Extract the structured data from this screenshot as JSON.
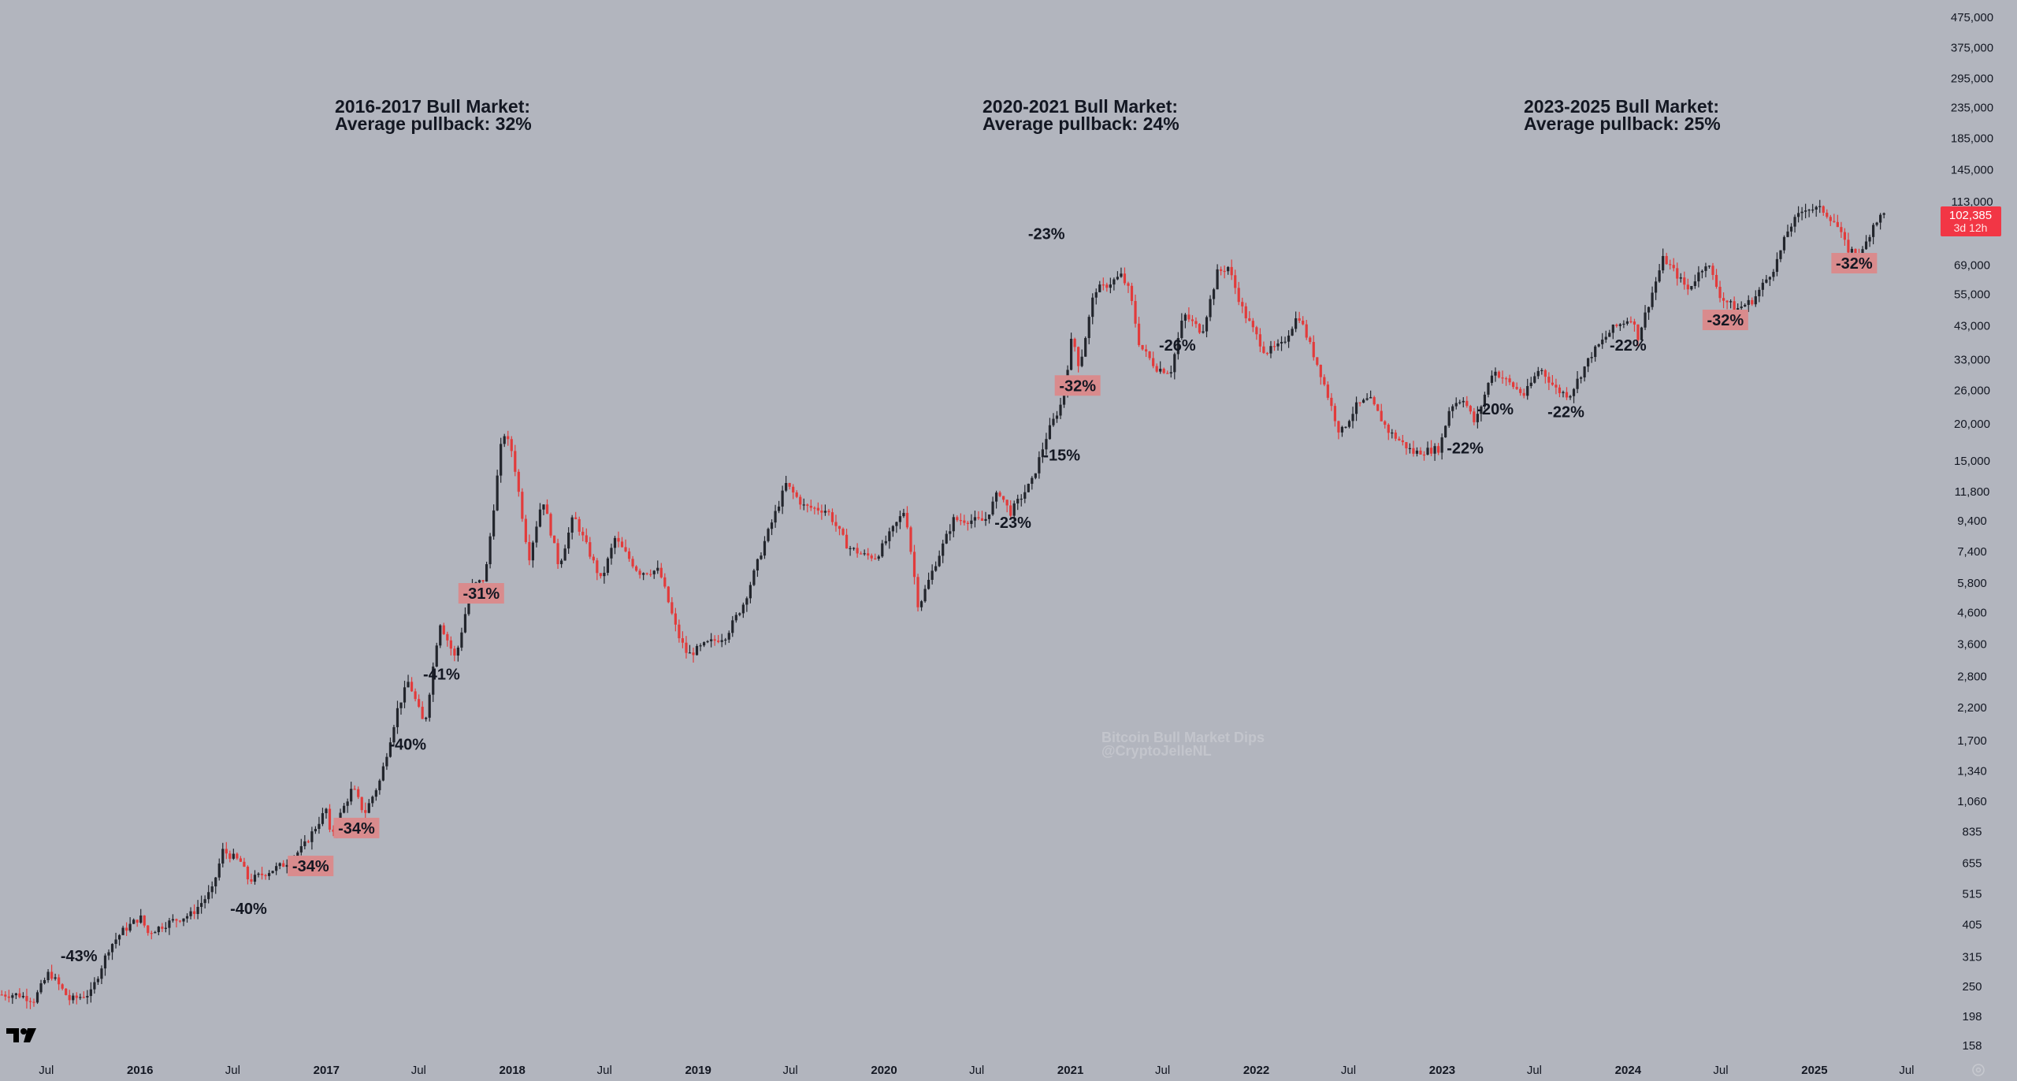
{
  "colors": {
    "background": "#b2b5be",
    "up_candle": "#22252c",
    "down_candle": "#e23b3b",
    "label_highlight": "#d98b8d",
    "price_tag": "#f23645"
  },
  "headings": [
    {
      "line1": "2016-2017 Bull Market:",
      "line2": "Average pullback: 32%"
    },
    {
      "line1": "2020-2021 Bull Market:",
      "line2": "Average pullback: 24%"
    },
    {
      "line1": "2023-2025 Bull Market:",
      "line2": "Average pullback: 25%"
    }
  ],
  "watermark": {
    "line1": "Bitcoin Bull Market Dips",
    "line2": "@CryptoJelleNL"
  },
  "price_tag": {
    "price": "102,385",
    "countdown": "3d 12h"
  },
  "icons": {
    "logo": "tradingview-logo-icon",
    "settings": "settings-icon"
  },
  "chart_data": {
    "type": "candlestick",
    "title": "",
    "xlabel": "",
    "ylabel": "",
    "scale": "log",
    "ylim": [
      158,
      475000
    ],
    "xlim": [
      "2015-04-01",
      "2025-09-01"
    ],
    "grid": false,
    "x_ticks": [
      {
        "date": "2015-07-01",
        "label": "Jul",
        "bold": false
      },
      {
        "date": "2016-01-01",
        "label": "2016",
        "bold": true
      },
      {
        "date": "2016-07-01",
        "label": "Jul",
        "bold": false
      },
      {
        "date": "2017-01-01",
        "label": "2017",
        "bold": true
      },
      {
        "date": "2017-07-01",
        "label": "Jul",
        "bold": false
      },
      {
        "date": "2018-01-01",
        "label": "2018",
        "bold": true
      },
      {
        "date": "2018-07-01",
        "label": "Jul",
        "bold": false
      },
      {
        "date": "2019-01-01",
        "label": "2019",
        "bold": true
      },
      {
        "date": "2019-07-01",
        "label": "Jul",
        "bold": false
      },
      {
        "date": "2020-01-01",
        "label": "2020",
        "bold": true
      },
      {
        "date": "2020-07-01",
        "label": "Jul",
        "bold": false
      },
      {
        "date": "2021-01-01",
        "label": "2021",
        "bold": true
      },
      {
        "date": "2021-07-01",
        "label": "Jul",
        "bold": false
      },
      {
        "date": "2022-01-01",
        "label": "2022",
        "bold": true
      },
      {
        "date": "2022-07-01",
        "label": "Jul",
        "bold": false
      },
      {
        "date": "2023-01-01",
        "label": "2023",
        "bold": true
      },
      {
        "date": "2023-07-01",
        "label": "Jul",
        "bold": false
      },
      {
        "date": "2024-01-01",
        "label": "2024",
        "bold": true
      },
      {
        "date": "2024-07-01",
        "label": "Jul",
        "bold": false
      },
      {
        "date": "2025-01-01",
        "label": "2025",
        "bold": true
      },
      {
        "date": "2025-07-01",
        "label": "Jul",
        "bold": false
      }
    ],
    "y_ticks": [
      {
        "value": 475000,
        "label": "475,000"
      },
      {
        "value": 375000,
        "label": "375,000"
      },
      {
        "value": 295000,
        "label": "295,000"
      },
      {
        "value": 235000,
        "label": "235,000"
      },
      {
        "value": 185000,
        "label": "185,000"
      },
      {
        "value": 145000,
        "label": "145,000"
      },
      {
        "value": 113000,
        "label": "113,000"
      },
      {
        "value": 69000,
        "label": "69,000"
      },
      {
        "value": 55000,
        "label": "55,000"
      },
      {
        "value": 43000,
        "label": "43,000"
      },
      {
        "value": 33000,
        "label": "33,000"
      },
      {
        "value": 26000,
        "label": "26,000"
      },
      {
        "value": 20000,
        "label": "20,000"
      },
      {
        "value": 15000,
        "label": "15,000"
      },
      {
        "value": 11800,
        "label": "11,800"
      },
      {
        "value": 9400,
        "label": "9,400"
      },
      {
        "value": 7400,
        "label": "7,400"
      },
      {
        "value": 5800,
        "label": "5,800"
      },
      {
        "value": 4600,
        "label": "4,600"
      },
      {
        "value": 3600,
        "label": "3,600"
      },
      {
        "value": 2800,
        "label": "2,800"
      },
      {
        "value": 2200,
        "label": "2,200"
      },
      {
        "value": 1700,
        "label": "1,700"
      },
      {
        "value": 1340,
        "label": "1,340"
      },
      {
        "value": 1060,
        "label": "1,060"
      },
      {
        "value": 835,
        "label": "835"
      },
      {
        "value": 655,
        "label": "655"
      },
      {
        "value": 515,
        "label": "515"
      },
      {
        "value": 405,
        "label": "405"
      },
      {
        "value": 315,
        "label": "315"
      },
      {
        "value": 250,
        "label": "250"
      },
      {
        "value": 198,
        "label": "198"
      },
      {
        "value": 158,
        "label": "158"
      }
    ],
    "series": [
      {
        "kind": "price_path",
        "points": [
          [
            "2015-04-01",
            235
          ],
          [
            "2015-05-10",
            235
          ],
          [
            "2015-06-10",
            225
          ],
          [
            "2015-07-10",
            280
          ],
          [
            "2015-08-20",
            225
          ],
          [
            "2015-09-30",
            238
          ],
          [
            "2015-11-05",
            340
          ],
          [
            "2015-12-01",
            385
          ],
          [
            "2016-01-05",
            430
          ],
          [
            "2016-01-20",
            380
          ],
          [
            "2016-03-05",
            415
          ],
          [
            "2016-04-15",
            440
          ],
          [
            "2016-05-25",
            530
          ],
          [
            "2016-06-15",
            720
          ],
          [
            "2016-07-20",
            660
          ],
          [
            "2016-08-05",
            570
          ],
          [
            "2016-09-10",
            610
          ],
          [
            "2016-10-15",
            650
          ],
          [
            "2016-11-20",
            740
          ],
          [
            "2016-12-20",
            900
          ],
          [
            "2017-01-05",
            1000
          ],
          [
            "2017-01-12",
            800
          ],
          [
            "2017-02-25",
            1180
          ],
          [
            "2017-03-20",
            960
          ],
          [
            "2017-04-20",
            1250
          ],
          [
            "2017-05-25",
            2200
          ],
          [
            "2017-06-15",
            2700
          ],
          [
            "2017-07-16",
            1900
          ],
          [
            "2017-08-15",
            4300
          ],
          [
            "2017-09-15",
            3200
          ],
          [
            "2017-10-15",
            5600
          ],
          [
            "2017-11-12",
            6000
          ],
          [
            "2017-12-17",
            19000
          ],
          [
            "2018-01-05",
            16000
          ],
          [
            "2018-02-06",
            7000
          ],
          [
            "2018-03-05",
            11300
          ],
          [
            "2018-04-06",
            6600
          ],
          [
            "2018-05-05",
            9800
          ],
          [
            "2018-06-28",
            5900
          ],
          [
            "2018-07-25",
            8200
          ],
          [
            "2018-09-10",
            6300
          ],
          [
            "2018-10-20",
            6400
          ],
          [
            "2018-11-25",
            3900
          ],
          [
            "2018-12-15",
            3300
          ],
          [
            "2019-01-20",
            3600
          ],
          [
            "2019-02-28",
            3850
          ],
          [
            "2019-04-05",
            5000
          ],
          [
            "2019-05-15",
            8000
          ],
          [
            "2019-06-26",
            12500
          ],
          [
            "2019-08-01",
            10500
          ],
          [
            "2019-09-15",
            10200
          ],
          [
            "2019-10-25",
            7700
          ],
          [
            "2019-11-25",
            7200
          ],
          [
            "2019-12-20",
            7100
          ],
          [
            "2020-01-20",
            8700
          ],
          [
            "2020-02-15",
            10300
          ],
          [
            "2020-03-12",
            4800
          ],
          [
            "2020-04-15",
            6800
          ],
          [
            "2020-05-20",
            9500
          ],
          [
            "2020-07-20",
            9400
          ],
          [
            "2020-08-17",
            11900
          ],
          [
            "2020-09-08",
            10000
          ],
          [
            "2020-10-21",
            12800
          ],
          [
            "2020-11-20",
            18500
          ],
          [
            "2020-12-20",
            24000
          ],
          [
            "2021-01-08",
            40000
          ],
          [
            "2021-01-22",
            31000
          ],
          [
            "2021-02-21",
            57000
          ],
          [
            "2021-03-10",
            58000
          ],
          [
            "2021-04-14",
            63500
          ],
          [
            "2021-05-01",
            56000
          ],
          [
            "2021-05-20",
            37000
          ],
          [
            "2021-06-22",
            31000
          ],
          [
            "2021-07-20",
            30000
          ],
          [
            "2021-08-15",
            47000
          ],
          [
            "2021-09-20",
            41000
          ],
          [
            "2021-10-20",
            65000
          ],
          [
            "2021-11-10",
            68000
          ],
          [
            "2021-12-10",
            48000
          ],
          [
            "2022-01-22",
            35000
          ],
          [
            "2022-02-24",
            37000
          ],
          [
            "2022-03-28",
            47000
          ],
          [
            "2022-05-10",
            30000
          ],
          [
            "2022-06-18",
            18500
          ],
          [
            "2022-07-20",
            23000
          ],
          [
            "2022-08-15",
            24300
          ],
          [
            "2022-09-20",
            19000
          ],
          [
            "2022-11-09",
            16000
          ],
          [
            "2022-12-30",
            16500
          ],
          [
            "2023-01-20",
            23000
          ],
          [
            "2023-02-15",
            24500
          ],
          [
            "2023-03-10",
            20000
          ],
          [
            "2023-04-14",
            30500
          ],
          [
            "2023-06-15",
            25000
          ],
          [
            "2023-07-15",
            31000
          ],
          [
            "2023-08-18",
            26000
          ],
          [
            "2023-09-11",
            25000
          ],
          [
            "2023-10-25",
            34500
          ],
          [
            "2023-12-05",
            42000
          ],
          [
            "2024-01-12",
            46000
          ],
          [
            "2024-01-23",
            39000
          ],
          [
            "2024-03-14",
            73000
          ],
          [
            "2024-05-01",
            57000
          ],
          [
            "2024-06-07",
            71000
          ],
          [
            "2024-07-05",
            53500
          ],
          [
            "2024-08-05",
            49000
          ],
          [
            "2024-09-06",
            52500
          ],
          [
            "2024-10-20",
            69000
          ],
          [
            "2024-11-15",
            92000
          ],
          [
            "2024-12-17",
            108000
          ],
          [
            "2025-01-20",
            106000
          ],
          [
            "2025-02-15",
            96000
          ],
          [
            "2025-03-10",
            78000
          ],
          [
            "2025-04-07",
            75000
          ],
          [
            "2025-05-01",
            96000
          ],
          [
            "2025-05-20",
            102385
          ]
        ]
      }
    ],
    "current_price": 102385,
    "annotations": [
      {
        "text": "-43%",
        "date": "2015-09-03",
        "price": 318,
        "highlight": false
      },
      {
        "text": "-40%",
        "date": "2016-08-01",
        "price": 460,
        "highlight": false
      },
      {
        "text": "-34%",
        "date": "2016-12-01",
        "price": 640,
        "highlight": true
      },
      {
        "text": "-34%",
        "date": "2017-03-01",
        "price": 860,
        "highlight": true
      },
      {
        "text": "-40%",
        "date": "2017-06-10",
        "price": 1650,
        "highlight": false
      },
      {
        "text": "-41%",
        "date": "2017-08-15",
        "price": 2850,
        "highlight": false
      },
      {
        "text": "-31%",
        "date": "2017-11-01",
        "price": 5350,
        "highlight": true
      },
      {
        "text": "-23%",
        "date": "2020-09-10",
        "price": 9300,
        "highlight": false
      },
      {
        "text": "-15%",
        "date": "2020-12-15",
        "price": 15700,
        "highlight": false
      },
      {
        "text": "-32%",
        "date": "2021-01-15",
        "price": 27000,
        "highlight": true
      },
      {
        "text": "-23%",
        "date": "2020-11-15",
        "price": 88000,
        "highlight": false
      },
      {
        "text": "-26%",
        "date": "2021-07-30",
        "price": 37000,
        "highlight": false
      },
      {
        "text": "-20%",
        "date": "2023-04-15",
        "price": 22500,
        "highlight": false
      },
      {
        "text": "-22%",
        "date": "2023-02-15",
        "price": 16600,
        "highlight": false
      },
      {
        "text": "-22%",
        "date": "2023-09-01",
        "price": 22000,
        "highlight": false
      },
      {
        "text": "-22%",
        "date": "2024-01-01",
        "price": 37000,
        "highlight": false
      },
      {
        "text": "-32%",
        "date": "2024-07-10",
        "price": 45000,
        "highlight": true
      },
      {
        "text": "-32%",
        "date": "2025-03-20",
        "price": 70000,
        "highlight": true
      }
    ]
  }
}
